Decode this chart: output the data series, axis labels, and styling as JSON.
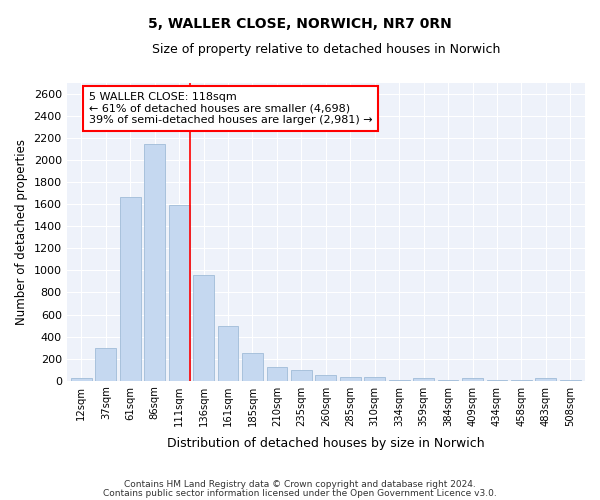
{
  "title": "5, WALLER CLOSE, NORWICH, NR7 0RN",
  "subtitle": "Size of property relative to detached houses in Norwich",
  "xlabel": "Distribution of detached houses by size in Norwich",
  "ylabel": "Number of detached properties",
  "bar_color": "#c5d8f0",
  "bar_edge_color": "#a0bcd8",
  "categories": [
    "12sqm",
    "37sqm",
    "61sqm",
    "86sqm",
    "111sqm",
    "136sqm",
    "161sqm",
    "185sqm",
    "210sqm",
    "235sqm",
    "260sqm",
    "285sqm",
    "310sqm",
    "334sqm",
    "359sqm",
    "384sqm",
    "409sqm",
    "434sqm",
    "458sqm",
    "483sqm",
    "508sqm"
  ],
  "values": [
    25,
    300,
    1670,
    2150,
    1590,
    960,
    500,
    250,
    120,
    100,
    50,
    30,
    30,
    10,
    20,
    10,
    20,
    5,
    5,
    20,
    5
  ],
  "ylim": [
    0,
    2700
  ],
  "yticks": [
    0,
    200,
    400,
    600,
    800,
    1000,
    1200,
    1400,
    1600,
    1800,
    2000,
    2200,
    2400,
    2600
  ],
  "property_line_bin": 4,
  "annotation_line1": "5 WALLER CLOSE: 118sqm",
  "annotation_line2": "← 61% of detached houses are smaller (4,698)",
  "annotation_line3": "39% of semi-detached houses are larger (2,981) →",
  "background_color": "#eef2fa",
  "grid_color": "#ffffff",
  "footer_line1": "Contains HM Land Registry data © Crown copyright and database right 2024.",
  "footer_line2": "Contains public sector information licensed under the Open Government Licence v3.0."
}
